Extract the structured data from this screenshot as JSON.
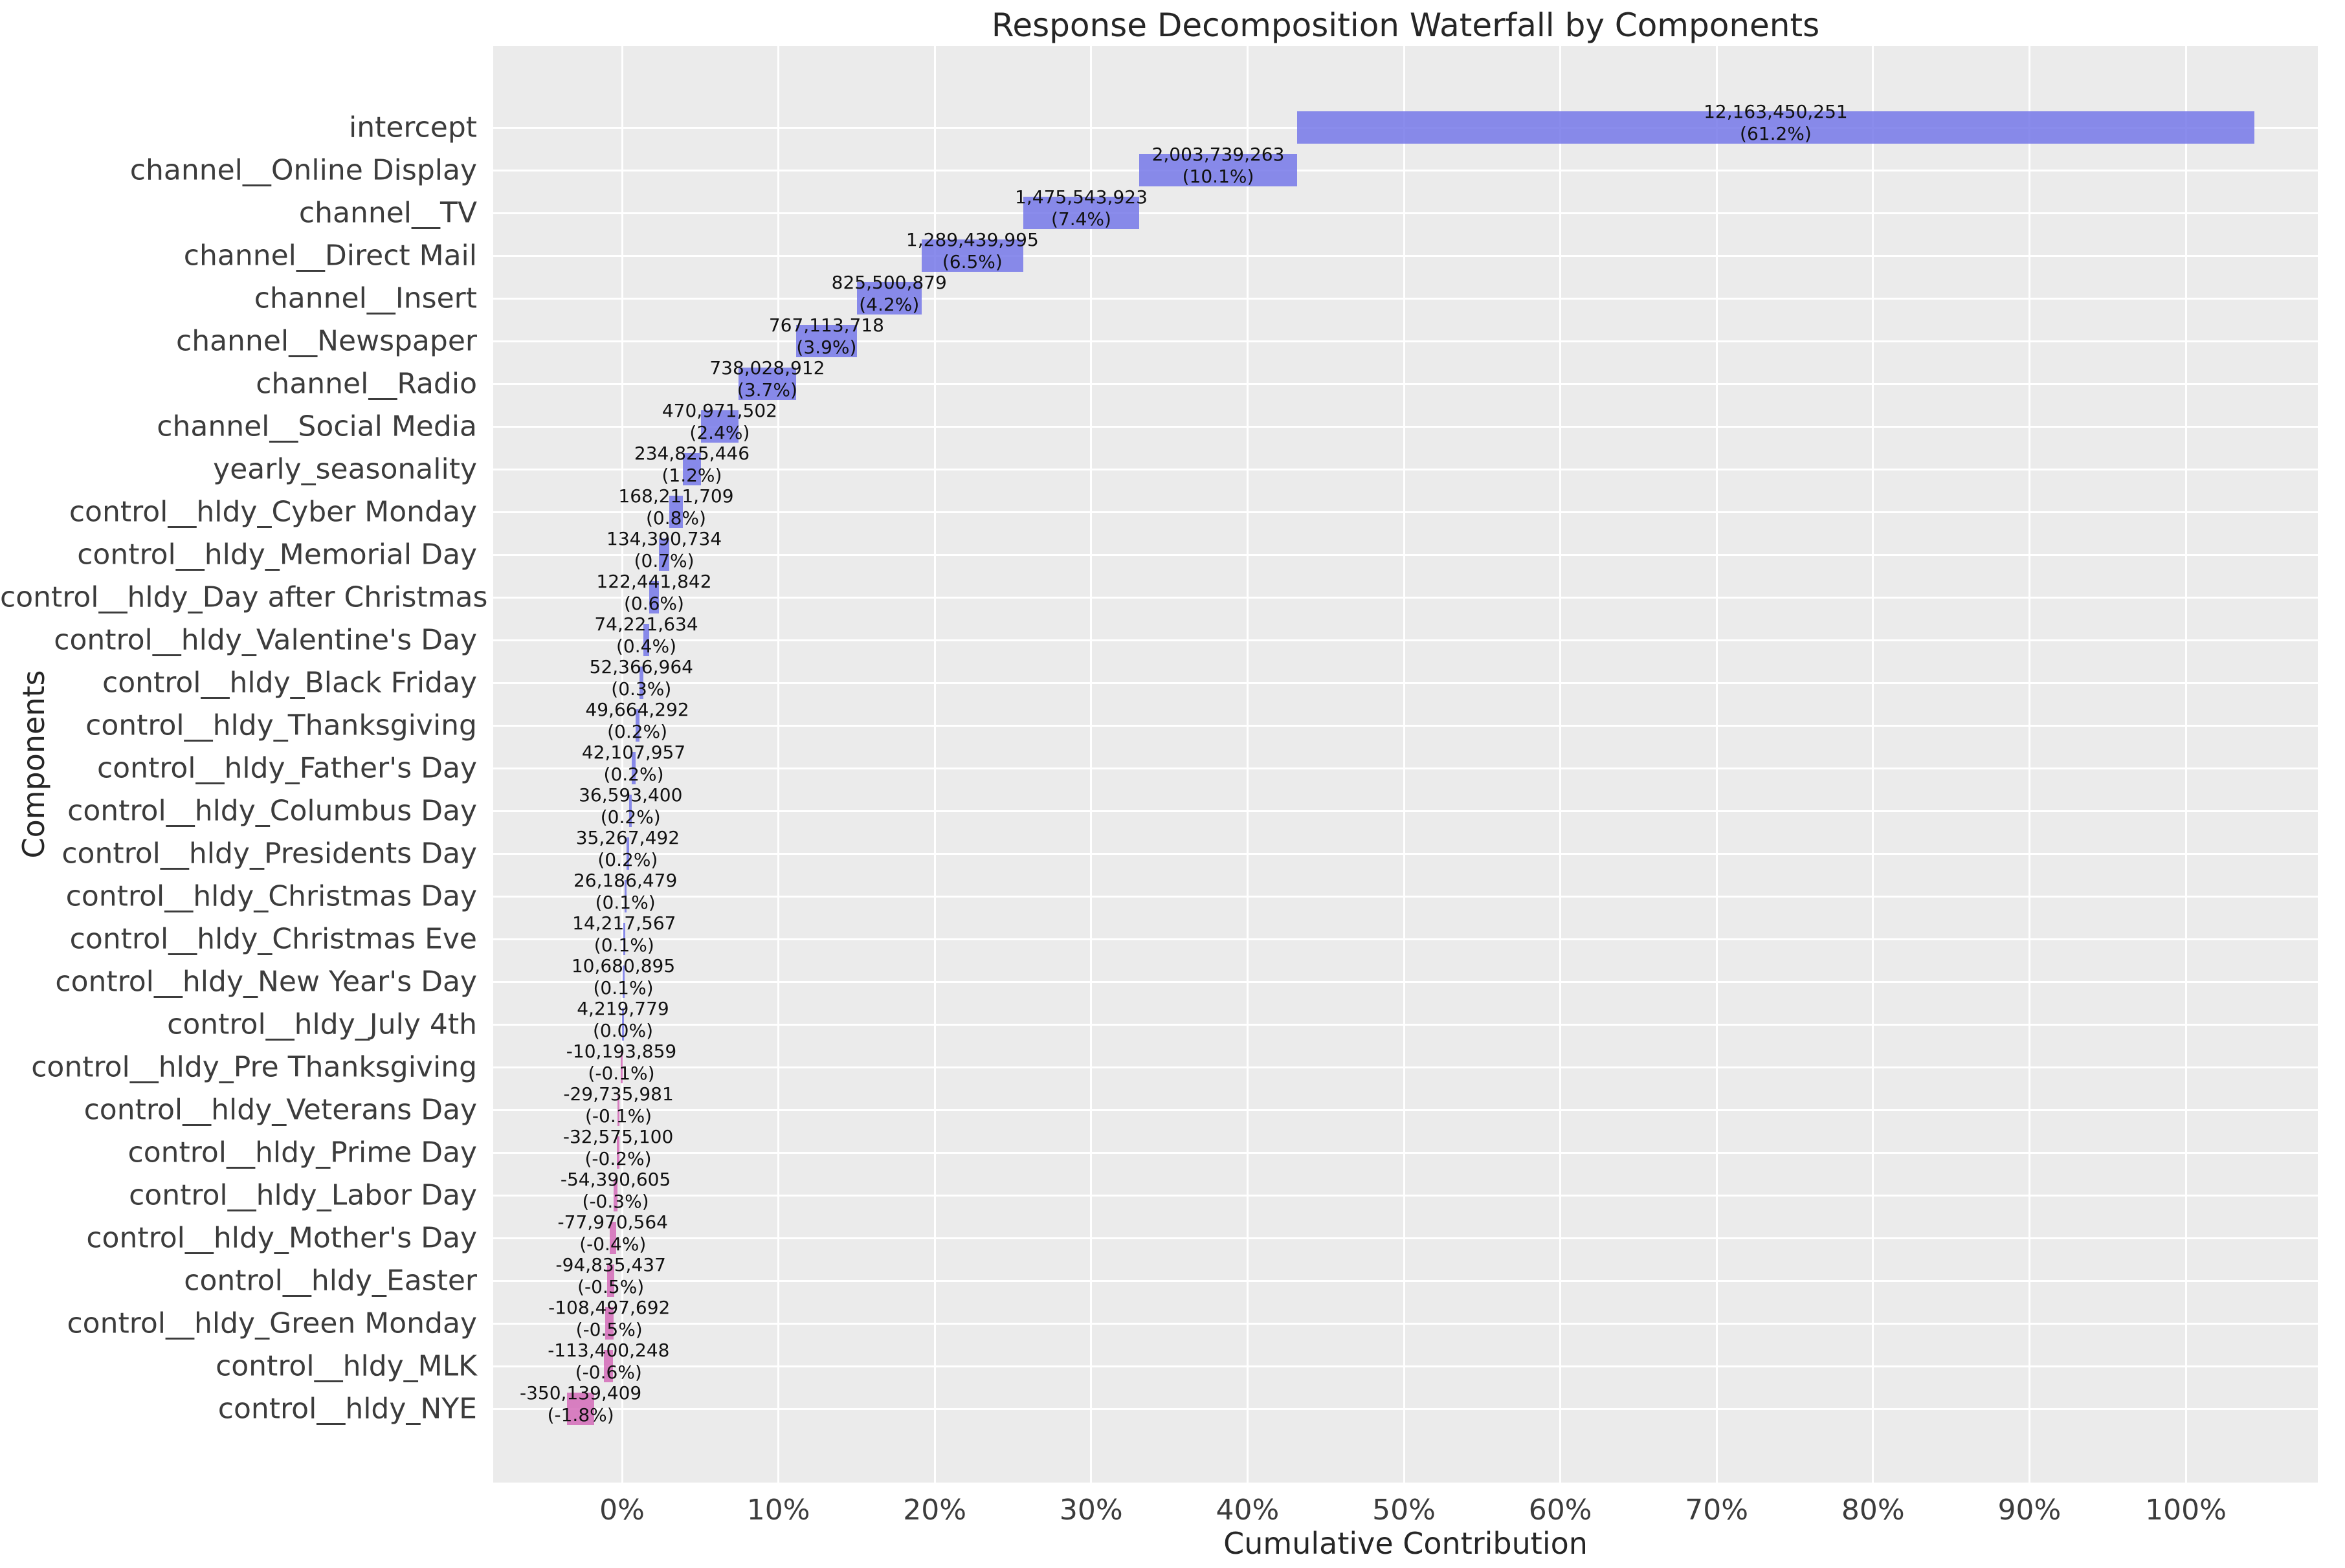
{
  "chart_data": {
    "type": "bar",
    "subtype": "waterfall",
    "orientation": "horizontal",
    "title": "Response Decomposition Waterfall by Components",
    "xlabel": "Cumulative Contribution",
    "ylabel": "Components",
    "grid": "on",
    "plot_background": "#ebebeb",
    "positive_color": "#7578e9",
    "negative_color": "#d46bb8",
    "bar_alpha": 0.85,
    "x_axis_range_pct": [
      -8.24,
      108.49
    ],
    "x_ticks": [
      {
        "value": 0,
        "label": "0%"
      },
      {
        "value": 10,
        "label": "10%"
      },
      {
        "value": 20,
        "label": "20%"
      },
      {
        "value": 30,
        "label": "30%"
      },
      {
        "value": 40,
        "label": "40%"
      },
      {
        "value": 50,
        "label": "50%"
      },
      {
        "value": 60,
        "label": "60%"
      },
      {
        "value": 70,
        "label": "70%"
      },
      {
        "value": 80,
        "label": "80%"
      },
      {
        "value": 90,
        "label": "90%"
      },
      {
        "value": 100,
        "label": "100%"
      }
    ],
    "components": [
      {
        "label": "intercept",
        "value": 12163450251,
        "value_label": "12,163,450,251",
        "pct_label": "(61.2%)"
      },
      {
        "label": "channel__Online Display",
        "value": 2003739263,
        "value_label": "2,003,739,263",
        "pct_label": "(10.1%)"
      },
      {
        "label": "channel__TV",
        "value": 1475543923,
        "value_label": "1,475,543,923",
        "pct_label": "(7.4%)"
      },
      {
        "label": "channel__Direct Mail",
        "value": 1289439995,
        "value_label": "1,289,439,995",
        "pct_label": "(6.5%)"
      },
      {
        "label": "channel__Insert",
        "value": 825500879,
        "value_label": "825,500,879",
        "pct_label": "(4.2%)"
      },
      {
        "label": "channel__Newspaper",
        "value": 767113718,
        "value_label": "767,113,718",
        "pct_label": "(3.9%)"
      },
      {
        "label": "channel__Radio",
        "value": 738028912,
        "value_label": "738,028,912",
        "pct_label": "(3.7%)"
      },
      {
        "label": "channel__Social Media",
        "value": 470971502,
        "value_label": "470,971,502",
        "pct_label": "(2.4%)"
      },
      {
        "label": "yearly_seasonality",
        "value": 234825446,
        "value_label": "234,825,446",
        "pct_label": "(1.2%)"
      },
      {
        "label": "control__hldy_Cyber Monday",
        "value": 168211709,
        "value_label": "168,211,709",
        "pct_label": "(0.8%)"
      },
      {
        "label": "control__hldy_Memorial Day",
        "value": 134390734,
        "value_label": "134,390,734",
        "pct_label": "(0.7%)"
      },
      {
        "label": "control__hldy_Day after Christmas",
        "value": 122441842,
        "value_label": "122,441,842",
        "pct_label": "(0.6%)"
      },
      {
        "label": "control__hldy_Valentine's Day",
        "value": 74221634,
        "value_label": "74,221,634",
        "pct_label": "(0.4%)"
      },
      {
        "label": "control__hldy_Black Friday",
        "value": 52366964,
        "value_label": "52,366,964",
        "pct_label": "(0.3%)"
      },
      {
        "label": "control__hldy_Thanksgiving",
        "value": 49664292,
        "value_label": "49,664,292",
        "pct_label": "(0.2%)"
      },
      {
        "label": "control__hldy_Father's Day",
        "value": 42107957,
        "value_label": "42,107,957",
        "pct_label": "(0.2%)"
      },
      {
        "label": "control__hldy_Columbus Day",
        "value": 36593400,
        "value_label": "36,593,400",
        "pct_label": "(0.2%)"
      },
      {
        "label": "control__hldy_Presidents Day",
        "value": 35267492,
        "value_label": "35,267,492",
        "pct_label": "(0.2%)"
      },
      {
        "label": "control__hldy_Christmas Day",
        "value": 26186479,
        "value_label": "26,186,479",
        "pct_label": "(0.1%)"
      },
      {
        "label": "control__hldy_Christmas Eve",
        "value": 14217567,
        "value_label": "14,217,567",
        "pct_label": "(0.1%)"
      },
      {
        "label": "control__hldy_New Year's Day",
        "value": 10680895,
        "value_label": "10,680,895",
        "pct_label": "(0.1%)"
      },
      {
        "label": "control__hldy_July 4th",
        "value": 4219779,
        "value_label": "4,219,779",
        "pct_label": "(0.0%)"
      },
      {
        "label": "control__hldy_Pre Thanksgiving",
        "value": -10193859,
        "value_label": "-10,193,859",
        "pct_label": "(-0.1%)"
      },
      {
        "label": "control__hldy_Veterans Day",
        "value": -29735981,
        "value_label": "-29,735,981",
        "pct_label": "(-0.1%)"
      },
      {
        "label": "control__hldy_Prime Day",
        "value": -32575100,
        "value_label": "-32,575,100",
        "pct_label": "(-0.2%)"
      },
      {
        "label": "control__hldy_Labor Day",
        "value": -54390605,
        "value_label": "-54,390,605",
        "pct_label": "(-0.3%)"
      },
      {
        "label": "control__hldy_Mother's Day",
        "value": -77970564,
        "value_label": "-77,970,564",
        "pct_label": "(-0.4%)"
      },
      {
        "label": "control__hldy_Easter",
        "value": -94835437,
        "value_label": "-94,835,437",
        "pct_label": "(-0.5%)"
      },
      {
        "label": "control__hldy_Green Monday",
        "value": -108497692,
        "value_label": "-108,497,692",
        "pct_label": "(-0.5%)"
      },
      {
        "label": "control__hldy_MLK",
        "value": -113400248,
        "value_label": "-113,400,248",
        "pct_label": "(-0.6%)"
      },
      {
        "label": "control__hldy_NYE",
        "value": -350139409,
        "value_label": "-350,139,409",
        "pct_label": "(-1.8%)"
      }
    ]
  }
}
